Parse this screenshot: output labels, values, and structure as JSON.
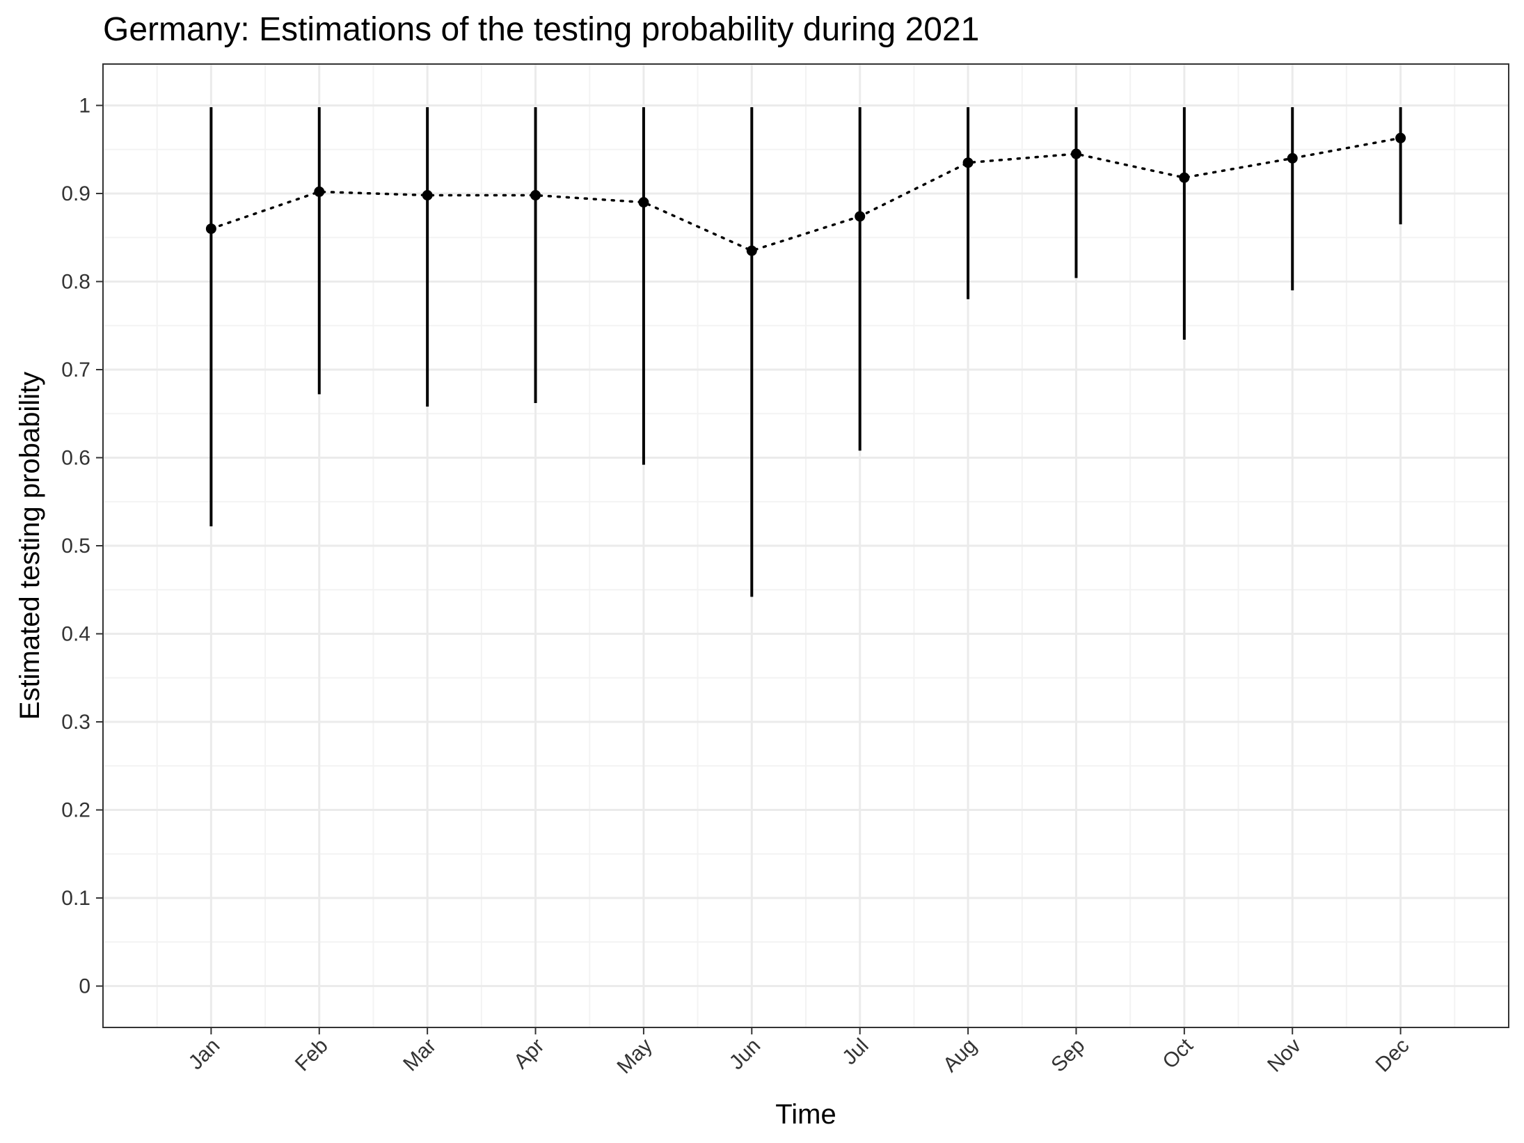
{
  "chart_data": {
    "type": "scatter",
    "title": "Germany: Estimations of the testing probability during 2021",
    "xlabel": "Time",
    "ylabel": "Estimated testing probability",
    "categories": [
      "Jan",
      "Feb",
      "Mar",
      "Apr",
      "May",
      "Jun",
      "Jul",
      "Aug",
      "Sep",
      "Oct",
      "Nov",
      "Dec"
    ],
    "series": [
      {
        "values": [
          0.86,
          0.902,
          0.898,
          0.898,
          0.89,
          0.835,
          0.874,
          0.935,
          0.945,
          0.918,
          0.94,
          0.963
        ],
        "lower": [
          0.522,
          0.672,
          0.658,
          0.662,
          0.592,
          0.442,
          0.608,
          0.78,
          0.804,
          0.734,
          0.79,
          0.865
        ],
        "upper": [
          0.998,
          0.998,
          0.998,
          0.998,
          0.998,
          0.998,
          0.998,
          0.998,
          0.998,
          0.998,
          0.998,
          0.998
        ]
      }
    ],
    "ylim": [
      -0.047,
      1.047
    ],
    "yticks": [
      0,
      0.1,
      0.2,
      0.3,
      0.4,
      0.5,
      0.6,
      0.7,
      0.8,
      0.9,
      1
    ],
    "ytick_labels": [
      "0",
      "0.1",
      "0.2",
      "0.3",
      "0.4",
      "0.5",
      "0.6",
      "0.7",
      "0.8",
      "0.9",
      "1"
    ],
    "line_style": "dotted",
    "grid": true,
    "colors": {
      "points": "#000000",
      "grid_major": "#ebebeb",
      "grid_minor": "#f3f3f3",
      "panel_border": "#333333"
    }
  }
}
